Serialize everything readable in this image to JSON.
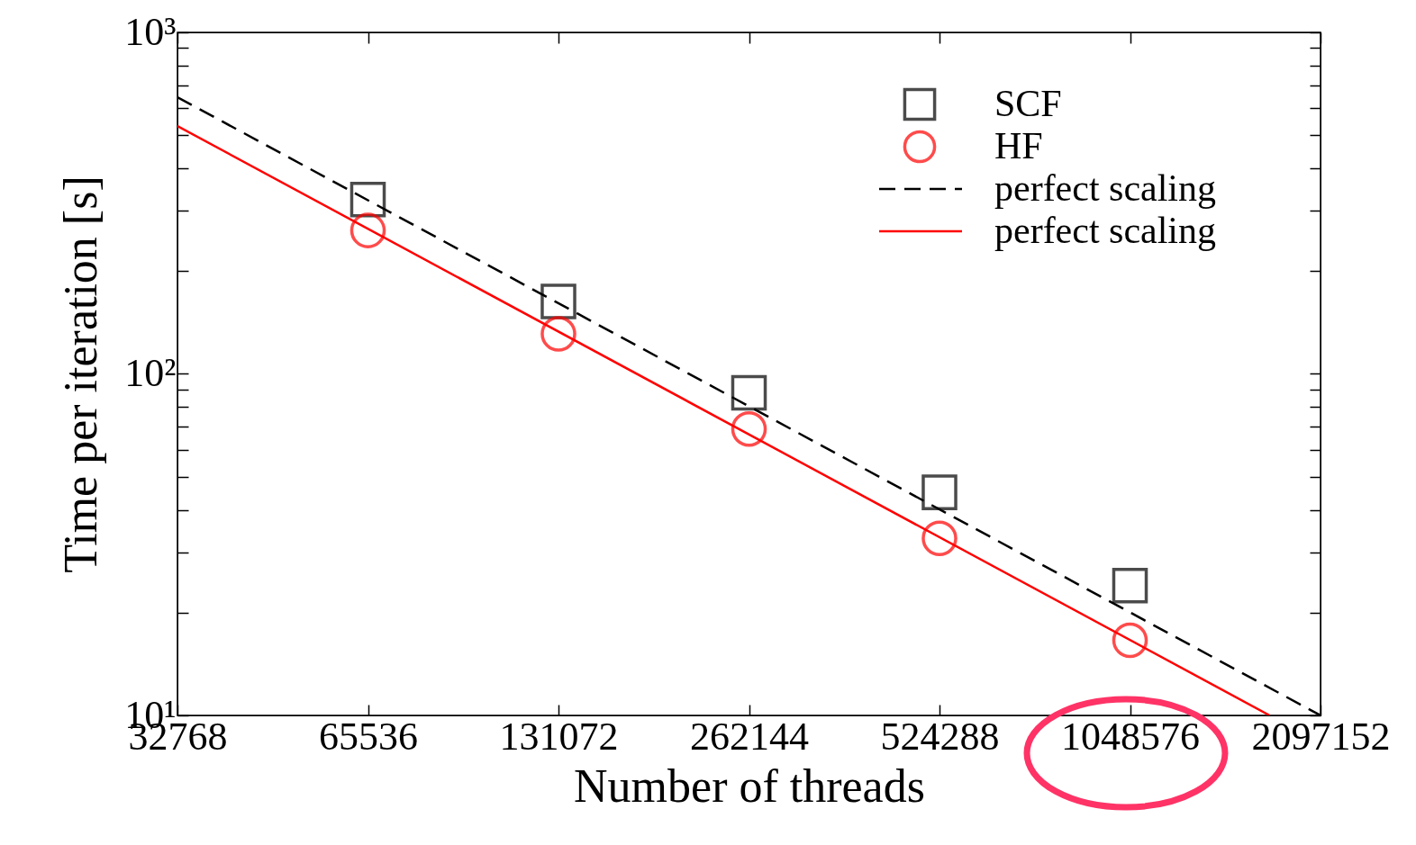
{
  "chart_data": {
    "type": "scatter",
    "xlabel": "Number of threads",
    "ylabel": "Time per iteration [s]",
    "log": "xy",
    "grid": false,
    "legend": "top right",
    "xlim": [
      32768,
      2097152
    ],
    "xticks": [
      32768,
      65536,
      131072,
      262144,
      524288,
      1048576,
      2097152
    ],
    "ylim": [
      10,
      1000
    ],
    "yticks": [
      {
        "value": 10,
        "label": "10¹"
      },
      {
        "value": 20,
        "label": null
      },
      {
        "value": 30,
        "label": null
      },
      {
        "value": 40,
        "label": null
      },
      {
        "value": 50,
        "label": null
      },
      {
        "value": 60,
        "label": null
      },
      {
        "value": 70,
        "label": null
      },
      {
        "value": 80,
        "label": null
      },
      {
        "value": 90,
        "label": null
      },
      {
        "value": 100,
        "label": "10²"
      },
      {
        "value": 200,
        "label": null
      },
      {
        "value": 300,
        "label": null
      },
      {
        "value": 400,
        "label": null
      },
      {
        "value": 500,
        "label": null
      },
      {
        "value": 600,
        "label": null
      },
      {
        "value": 700,
        "label": null
      },
      {
        "value": 800,
        "label": null
      },
      {
        "value": 900,
        "label": null
      },
      {
        "value": 1000,
        "label": "10³"
      }
    ],
    "series": [
      {
        "name": "SCF",
        "marker": "square",
        "color": "#000000",
        "x": [
          65536,
          131072,
          262144,
          524288,
          1048576
        ],
        "values": [
          324,
          163,
          88,
          45,
          24
        ]
      },
      {
        "name": "HF",
        "marker": "circle",
        "color": "#ff0000",
        "x": [
          65536,
          131072,
          262144,
          524288,
          1048576
        ],
        "values": [
          263,
          131,
          69,
          33,
          16.6
        ]
      },
      {
        "name": "perfect scaling",
        "type": "line",
        "marker": "none",
        "line_style": "dashed",
        "color": "#000000",
        "x": [
          32768,
          2097152
        ],
        "values": [
          646,
          10
        ]
      },
      {
        "name": "perfect scaling",
        "type": "line",
        "marker": "none",
        "line_style": "solid",
        "color": "#ff0000",
        "x": [
          32768,
          1743000
        ],
        "values": [
          532,
          10
        ]
      }
    ]
  }
}
